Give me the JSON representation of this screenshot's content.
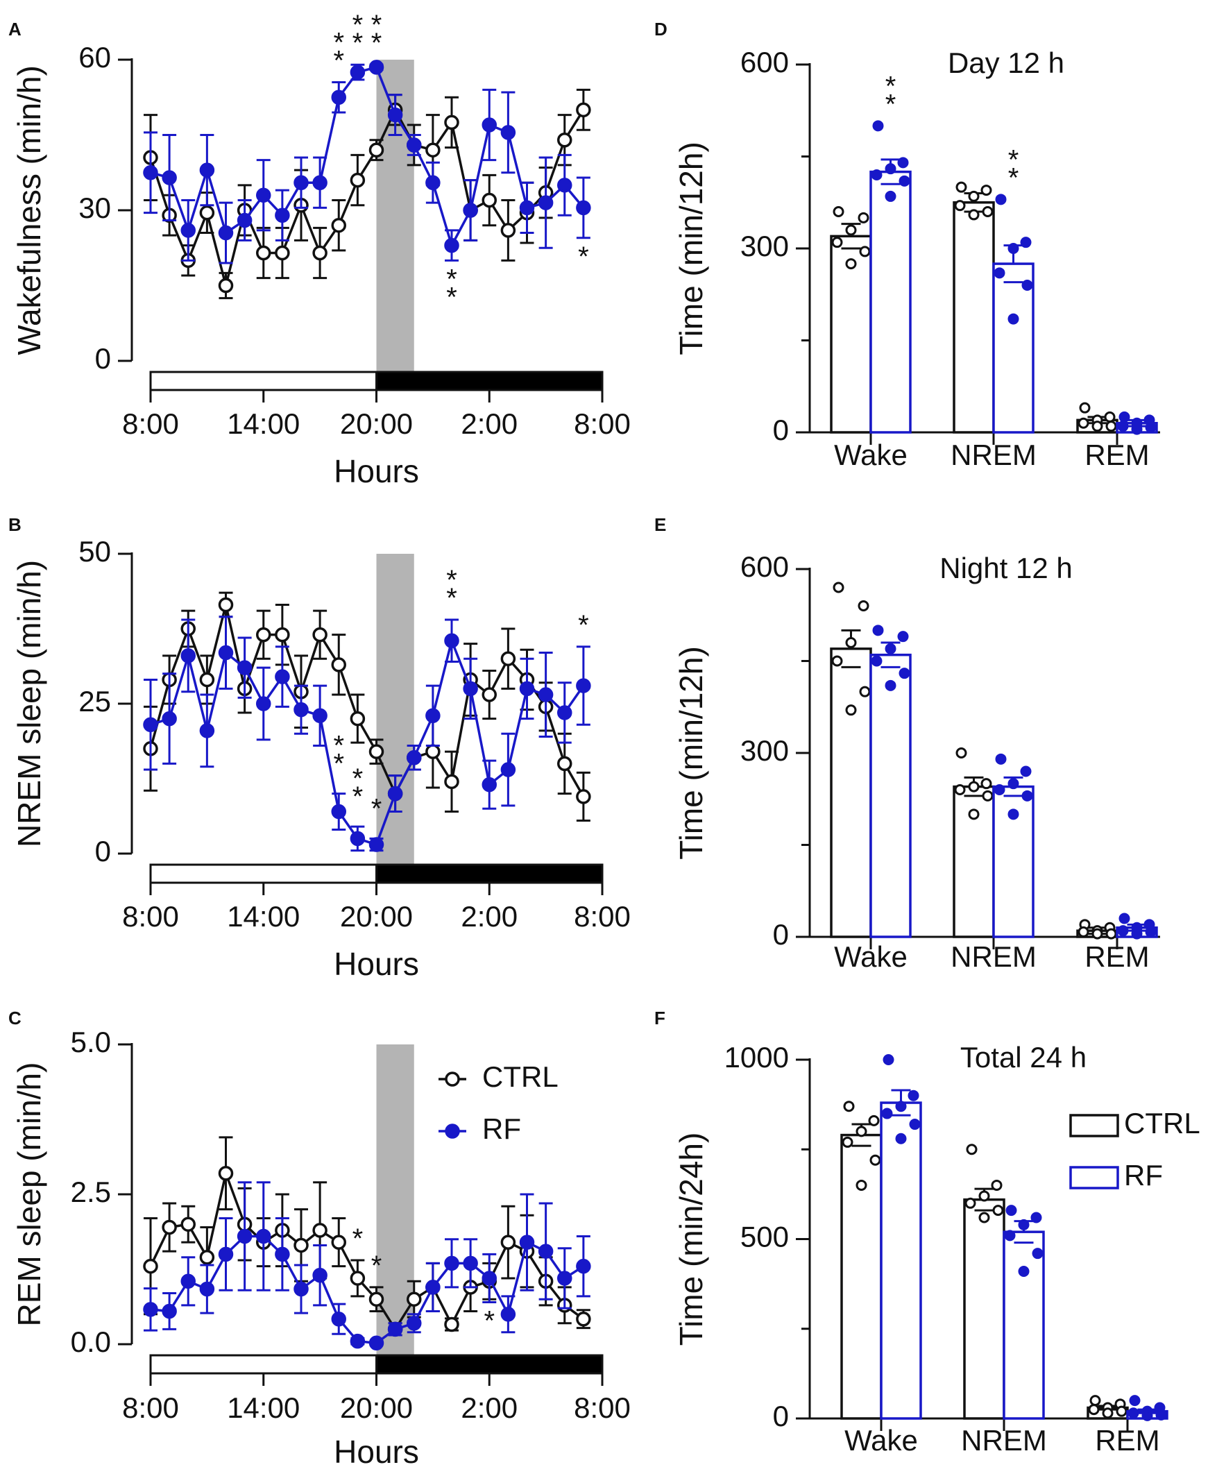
{
  "figure": {
    "colors": {
      "ctrl": "#111111",
      "rf": "#1818c8",
      "shade": "#b4b4b4"
    }
  },
  "chart_data": [
    {
      "id": "A",
      "panel_label": "A",
      "type": "line",
      "title": "",
      "ylabel": "Wakefulness (min/h)",
      "xlabel": "Hours",
      "ylim": [
        0,
        60
      ],
      "yticks": [
        0,
        30,
        60
      ],
      "xrange": [
        0,
        24
      ],
      "xticks": [
        0,
        6,
        12,
        18,
        24
      ],
      "xtick_labels": [
        "8:00",
        "14:00",
        "20:00",
        "2:00",
        "8:00"
      ],
      "shaded_interval": [
        12,
        14
      ],
      "light_dark_bar": {
        "light": [
          0,
          12
        ],
        "dark": [
          12,
          24
        ]
      },
      "x": [
        0,
        1,
        2,
        3,
        4,
        5,
        6,
        7,
        8,
        9,
        10,
        11,
        12,
        13,
        14,
        15,
        16,
        17,
        18,
        19,
        20,
        21,
        22,
        23
      ],
      "series": [
        {
          "name": "CTRL",
          "style": "open",
          "values": [
            40.5,
            29,
            20,
            29.5,
            15,
            30,
            21.5,
            21.5,
            31,
            21.5,
            27,
            36,
            42,
            50,
            43,
            42,
            47.5,
            30,
            32,
            26,
            29.5,
            33.5,
            44,
            50
          ],
          "errors": [
            8.5,
            4,
            3,
            4,
            2.5,
            5,
            5,
            5,
            7,
            5,
            5,
            5,
            2,
            3,
            4,
            7,
            5,
            6,
            5,
            6,
            6,
            5,
            5,
            4
          ]
        },
        {
          "name": "RF",
          "style": "filled",
          "values": [
            37.5,
            36.5,
            26,
            38,
            25.5,
            28,
            33,
            29,
            35.5,
            35.5,
            52.5,
            57.5,
            58.5,
            49,
            43,
            35.5,
            23,
            30,
            47,
            45.5,
            30.5,
            31.5,
            35,
            30.5
          ],
          "errors": [
            8,
            8.5,
            6,
            7,
            6,
            4,
            7,
            5,
            5,
            5,
            3,
            1.5,
            0.5,
            4,
            2,
            4,
            3,
            6,
            7,
            8,
            5,
            9,
            6,
            6
          ]
        }
      ],
      "annotations": [
        {
          "x": 10,
          "text": "* *"
        },
        {
          "x": 11,
          "text": "* *"
        },
        {
          "x": 12,
          "text": "* *"
        },
        {
          "x": 16,
          "text": "* *"
        },
        {
          "x": 23,
          "text": "*"
        }
      ]
    },
    {
      "id": "B",
      "panel_label": "B",
      "type": "line",
      "title": "",
      "ylabel": "NREM sleep (min/h)",
      "xlabel": "Hours",
      "ylim": [
        0,
        50
      ],
      "yticks": [
        0,
        25,
        50
      ],
      "xrange": [
        0,
        24
      ],
      "xticks": [
        0,
        6,
        12,
        18,
        24
      ],
      "xtick_labels": [
        "8:00",
        "14:00",
        "20:00",
        "2:00",
        "8:00"
      ],
      "shaded_interval": [
        12,
        14
      ],
      "light_dark_bar": {
        "light": [
          0,
          12
        ],
        "dark": [
          12,
          24
        ]
      },
      "x": [
        0,
        1,
        2,
        3,
        4,
        5,
        6,
        7,
        8,
        9,
        10,
        11,
        12,
        13,
        14,
        15,
        16,
        17,
        18,
        19,
        20,
        21,
        22,
        23
      ],
      "series": [
        {
          "name": "CTRL",
          "style": "open",
          "values": [
            17.5,
            29,
            37.5,
            29,
            41.5,
            27.5,
            36.5,
            36.5,
            27,
            36.5,
            31.5,
            22.5,
            17,
            10,
            16,
            17,
            12,
            29,
            26.5,
            32.5,
            29,
            24.5,
            15,
            9.5
          ],
          "errors": [
            7,
            4,
            3,
            4,
            2,
            4,
            4,
            5,
            6,
            4,
            5,
            4,
            2,
            3,
            2,
            6,
            5,
            6,
            4,
            5,
            5,
            4,
            5,
            4
          ]
        },
        {
          "name": "RF",
          "style": "filled",
          "values": [
            21.5,
            22.5,
            33,
            20.5,
            33.5,
            31,
            25,
            29.5,
            24,
            23,
            7,
            2.5,
            1.5,
            10,
            16,
            23,
            35.5,
            27.5,
            11.5,
            14,
            27.5,
            26.5,
            23.5,
            28
          ],
          "errors": [
            7.5,
            7.5,
            6,
            6,
            6,
            5,
            6,
            5,
            4,
            5,
            3,
            2,
            1,
            3,
            2,
            5,
            3.5,
            5,
            4,
            6,
            5,
            7,
            5,
            6.5
          ]
        }
      ],
      "annotations": [
        {
          "x": 10,
          "text": "* *"
        },
        {
          "x": 11,
          "text": "* *"
        },
        {
          "x": 12,
          "text": "*"
        },
        {
          "x": 16,
          "text": "* *"
        },
        {
          "x": 23,
          "text": "*"
        }
      ]
    },
    {
      "id": "C",
      "panel_label": "C",
      "type": "line",
      "title": "",
      "ylabel": "REM sleep (min/h)",
      "xlabel": "Hours",
      "ylim": [
        0,
        5
      ],
      "yticks": [
        0,
        2.5,
        5
      ],
      "ytick_labels": [
        "0.0",
        "2.5",
        "5.0"
      ],
      "xrange": [
        0,
        24
      ],
      "xticks": [
        0,
        6,
        12,
        18,
        24
      ],
      "xtick_labels": [
        "8:00",
        "14:00",
        "20:00",
        "2:00",
        "8:00"
      ],
      "shaded_interval": [
        12,
        14
      ],
      "light_dark_bar": {
        "light": [
          0,
          12
        ],
        "dark": [
          12,
          24
        ]
      },
      "x": [
        0,
        1,
        2,
        3,
        4,
        5,
        6,
        7,
        8,
        9,
        10,
        11,
        12,
        13,
        14,
        15,
        16,
        17,
        18,
        19,
        20,
        21,
        22,
        23
      ],
      "series": [
        {
          "name": "CTRL",
          "style": "open",
          "values": [
            1.3,
            1.95,
            2.0,
            1.45,
            2.85,
            2.0,
            1.7,
            1.9,
            1.65,
            1.9,
            1.7,
            1.1,
            0.75,
            0.25,
            0.75,
            0.95,
            0.33,
            0.95,
            1.05,
            1.7,
            1.55,
            1.05,
            0.65,
            0.42
          ],
          "errors": [
            0.8,
            0.4,
            0.3,
            0.5,
            0.6,
            0.6,
            0.4,
            0.6,
            0.6,
            0.8,
            0.4,
            0.3,
            0.2,
            0.1,
            0.3,
            0.4,
            0.1,
            0.4,
            0.3,
            0.6,
            0.6,
            0.4,
            0.3,
            0.15
          ]
        },
        {
          "name": "RF",
          "style": "filled",
          "values": [
            0.58,
            0.55,
            1.05,
            0.92,
            1.5,
            1.8,
            1.8,
            1.5,
            0.92,
            1.15,
            0.42,
            0.05,
            0.02,
            0.25,
            0.35,
            0.95,
            1.35,
            1.35,
            1.1,
            0.5,
            1.7,
            1.55,
            1.1,
            1.3
          ]
        },
        {
          "name": "RF_err",
          "hidden": true,
          "values": [
            0.35,
            0.3,
            0.4,
            0.4,
            0.6,
            0.9,
            0.9,
            0.6,
            0.4,
            0.5,
            0.25,
            0.05,
            0.02,
            0.1,
            0.15,
            0.4,
            0.4,
            0.4,
            0.4,
            0.3,
            0.8,
            0.8,
            0.5,
            0.5
          ]
        }
      ],
      "annotations": [
        {
          "x": 11,
          "text": "*"
        },
        {
          "x": 12,
          "text": "*"
        },
        {
          "x": 18,
          "text": "*",
          "below": true
        }
      ],
      "legend": [
        {
          "label": "CTRL",
          "style": "open"
        },
        {
          "label": "RF",
          "style": "filled"
        }
      ]
    },
    {
      "id": "D",
      "panel_label": "D",
      "type": "bar",
      "title": "Day 12 h",
      "ylabel": "Time (min/12h)",
      "xlabel": "",
      "ylim": [
        0,
        600
      ],
      "yticks": [
        0,
        300,
        600
      ],
      "categories": [
        "Wake",
        "NREM",
        "REM"
      ],
      "series": [
        {
          "name": "CTRL",
          "values": [
            320,
            375,
            20
          ],
          "errors": [
            20,
            15,
            5
          ],
          "points": [
            [
              360,
              350,
              330,
              310,
              295,
              275
            ],
            [
              400,
              395,
              385,
              370,
              360,
              355
            ],
            [
              40,
              25,
              20,
              15,
              10,
              10
            ]
          ]
        },
        {
          "name": "RF",
          "values": [
            425,
            275,
            15
          ],
          "errors": [
            20,
            30,
            5
          ],
          "points": [
            [
              500,
              440,
              430,
              420,
              410,
              385
            ],
            [
              380,
              310,
              300,
              260,
              240,
              185
            ],
            [
              25,
              20,
              15,
              10,
              8,
              5
            ]
          ]
        }
      ],
      "annotations": [
        {
          "bar": "Wake-RF",
          "text": "* *"
        },
        {
          "bar": "NREM-RF",
          "text": "* *"
        }
      ]
    },
    {
      "id": "E",
      "panel_label": "E",
      "type": "bar",
      "title": "Night 12 h",
      "ylabel": "Time (min/12h)",
      "xlabel": "",
      "ylim": [
        0,
        600
      ],
      "yticks": [
        0,
        300,
        600
      ],
      "categories": [
        "Wake",
        "NREM",
        "REM"
      ],
      "series": [
        {
          "name": "CTRL",
          "values": [
            470,
            245,
            10
          ],
          "errors": [
            30,
            15,
            5
          ],
          "points": [
            [
              570,
              540,
              480,
              450,
              400,
              370
            ],
            [
              300,
              250,
              245,
              240,
              230,
              200
            ],
            [
              20,
              15,
              10,
              8,
              5,
              5
            ]
          ]
        },
        {
          "name": "RF",
          "values": [
            460,
            245,
            15
          ],
          "errors": [
            20,
            15,
            5
          ],
          "points": [
            [
              500,
              490,
              470,
              450,
              430,
              410
            ],
            [
              290,
              270,
              250,
              240,
              230,
              200
            ],
            [
              30,
              20,
              15,
              10,
              8,
              5
            ]
          ]
        }
      ]
    },
    {
      "id": "F",
      "panel_label": "F",
      "type": "bar",
      "title": "Total 24 h",
      "ylabel": "Time (min/24h)",
      "xlabel": "",
      "ylim": [
        0,
        1000
      ],
      "yticks": [
        0,
        500,
        1000
      ],
      "categories": [
        "Wake",
        "NREM",
        "REM"
      ],
      "series": [
        {
          "name": "CTRL",
          "values": [
            790,
            610,
            30
          ],
          "errors": [
            30,
            30,
            5
          ],
          "points": [
            [
              870,
              830,
              800,
              770,
              720,
              650
            ],
            [
              750,
              650,
              620,
              600,
              580,
              560
            ],
            [
              50,
              40,
              30,
              25,
              20,
              15
            ]
          ]
        },
        {
          "name": "RF",
          "values": [
            880,
            520,
            20
          ],
          "errors": [
            35,
            30,
            5
          ],
          "points": [
            [
              1000,
              900,
              870,
              850,
              820,
              780
            ],
            [
              580,
              560,
              540,
              510,
              460,
              410
            ],
            [
              50,
              30,
              20,
              15,
              10,
              8
            ]
          ]
        }
      ],
      "legend": [
        {
          "label": "CTRL",
          "style": "open"
        },
        {
          "label": "RF",
          "style": "open"
        }
      ]
    }
  ]
}
